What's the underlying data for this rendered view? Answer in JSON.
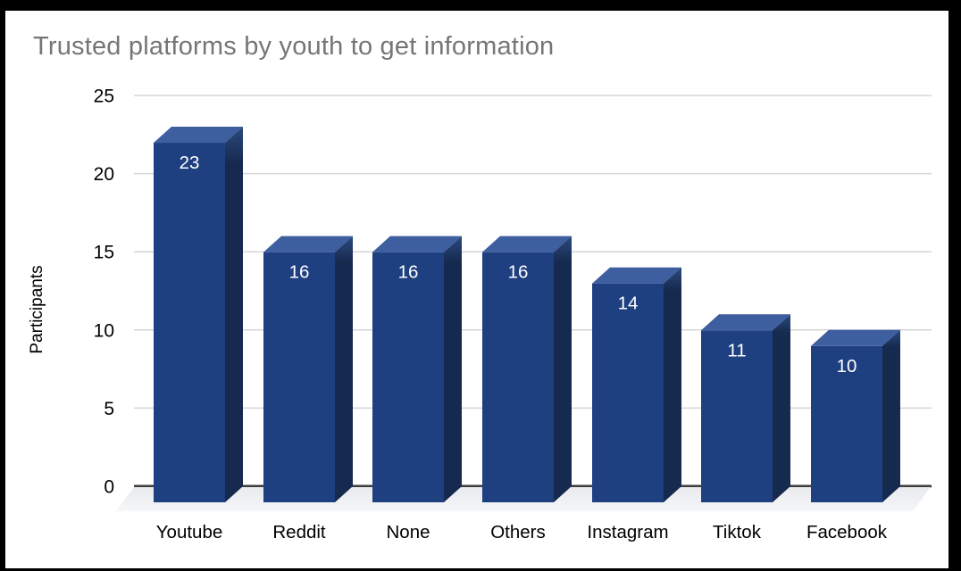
{
  "frame": {
    "background_color": "#000000",
    "slide_color": "#ffffff"
  },
  "chart_data": {
    "type": "bar",
    "style": "3d-column",
    "title": "Trusted platforms by youth to get information",
    "categories": [
      "Youtube",
      "Reddit",
      "None",
      "Others",
      "Instagram",
      "Tiktok",
      "Facebook"
    ],
    "values": [
      23,
      16,
      16,
      16,
      14,
      11,
      10
    ],
    "xlabel": "",
    "ylabel": "Participants",
    "ylim": [
      0,
      25
    ],
    "yticks": [
      0,
      5,
      10,
      15,
      20,
      25
    ],
    "grid": true,
    "legend": "none",
    "colors": {
      "bar_front": "#1e3f80",
      "bar_top": "#3d5e9f",
      "bar_side": "#16294e",
      "bar_side_highlight": "#2b4a7e",
      "grid_line": "#d5d5d7",
      "axis_line": "#3d3d3d",
      "floor_top": "#e9eaee",
      "floor_bottom": "#f5f6f8",
      "title_text": "#767676",
      "tick_text": "#000000",
      "category_text": "#000000",
      "value_label_text": "#ffffff"
    }
  }
}
